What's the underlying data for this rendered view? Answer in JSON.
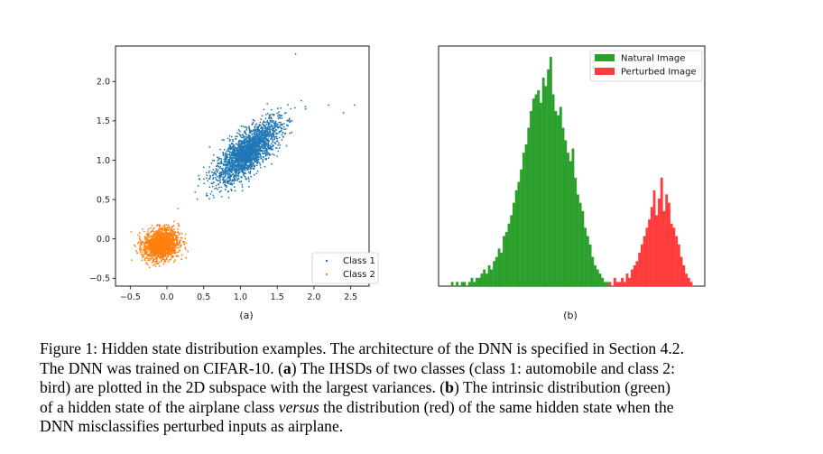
{
  "figure": {
    "subfigures": [
      {
        "label": "(a)",
        "chart_data": {
          "type": "scatter",
          "title": "",
          "xlabel": "",
          "ylabel": "",
          "xlim": [
            -0.7,
            2.75
          ],
          "ylim": [
            -0.6,
            2.45
          ],
          "xticks": [
            "−0.5",
            "0.0",
            "0.5",
            "1.0",
            "1.5",
            "2.0",
            "2.5"
          ],
          "xtick_values": [
            -0.5,
            0.0,
            0.5,
            1.0,
            1.5,
            2.0,
            2.5
          ],
          "yticks": [
            "−0.5",
            "0.0",
            "0.5",
            "1.0",
            "1.5",
            "2.0"
          ],
          "ytick_values": [
            -0.5,
            0.0,
            0.5,
            1.0,
            1.5,
            2.0
          ],
          "legend_position": "bottom-right",
          "series": [
            {
              "name": "Class 1",
              "color": "#1f77b4",
              "center": [
                1.1,
                1.1
              ],
              "spread": [
                0.22,
                0.2
              ],
              "correlation": 0.75,
              "points": 2200
            },
            {
              "name": "Class 2",
              "color": "#ff7f0e",
              "center": [
                -0.08,
                -0.07
              ],
              "spread": [
                0.12,
                0.1
              ],
              "correlation": 0.15,
              "points": 1500
            }
          ],
          "outliers": [
            [
              1.75,
              2.35
            ],
            [
              2.4,
              1.6
            ],
            [
              2.55,
              1.7
            ],
            [
              2.2,
              1.7
            ]
          ]
        }
      },
      {
        "label": "(b)",
        "chart_data": {
          "type": "bar",
          "title": "",
          "xlabel": "",
          "ylabel": "",
          "grid": false,
          "axis_ticks": false,
          "legend_position": "top-right",
          "bins": 100,
          "series": [
            {
              "name": "Natural Image",
              "color": "#2ca02c",
              "counts": [
                0,
                1,
                0,
                1,
                0,
                1,
                1,
                0,
                1,
                2,
                1,
                2,
                2,
                3,
                4,
                3,
                5,
                4,
                6,
                7,
                9,
                8,
                12,
                13,
                15,
                17,
                20,
                23,
                25,
                28,
                32,
                34,
                38,
                42,
                45,
                46,
                47,
                44,
                50,
                48,
                52,
                55,
                46,
                42,
                41,
                43,
                38,
                35,
                32,
                30,
                33,
                26,
                22,
                20,
                18,
                14,
                12,
                10,
                7,
                5,
                4,
                3,
                2,
                1,
                1,
                0,
                0,
                0,
                0,
                0,
                0,
                0,
                0,
                0,
                0,
                0,
                0,
                0,
                0,
                0,
                0,
                0,
                0,
                0,
                0,
                0,
                0,
                0,
                0,
                0,
                0,
                0,
                0,
                0,
                0,
                0,
                0,
                0,
                0,
                0
              ]
            },
            {
              "name": "Perturbed Image",
              "color": "#ff3b3b",
              "counts": [
                0,
                0,
                0,
                0,
                0,
                0,
                0,
                0,
                0,
                0,
                0,
                0,
                0,
                0,
                0,
                0,
                0,
                0,
                0,
                0,
                0,
                0,
                0,
                0,
                0,
                0,
                0,
                0,
                0,
                0,
                0,
                0,
                0,
                0,
                0,
                0,
                0,
                0,
                0,
                0,
                0,
                0,
                0,
                0,
                0,
                0,
                0,
                0,
                0,
                0,
                0,
                0,
                0,
                0,
                0,
                0,
                0,
                0,
                0,
                0,
                0,
                0,
                0,
                0,
                0,
                1,
                0,
                2,
                1,
                1,
                2,
                1,
                3,
                2,
                4,
                5,
                6,
                8,
                10,
                12,
                14,
                16,
                19,
                23,
                17,
                21,
                26,
                18,
                22,
                20,
                15,
                14,
                12,
                10,
                7,
                5,
                3,
                2,
                1,
                0
              ]
            }
          ]
        }
      }
    ],
    "caption_lines": [
      [
        "Figure 1: Hidden state distribution examples. The architecture of the DNN is specified in Section 4.2."
      ],
      [
        "The DNN was trained on CIFAR-10. (",
        "a",
        ") The IHSDs of two classes (class 1: automobile and class 2:"
      ],
      [
        "bird) are plotted in the 2D subspace with the largest variances. (",
        "b",
        ") The intrinsic distribution (green)"
      ],
      [
        "of a hidden state of the airplane class ",
        "versus",
        " the distribution (red) of the same hidden state when the"
      ],
      [
        "DNN misclassifies perturbed inputs as airplane."
      ]
    ]
  }
}
